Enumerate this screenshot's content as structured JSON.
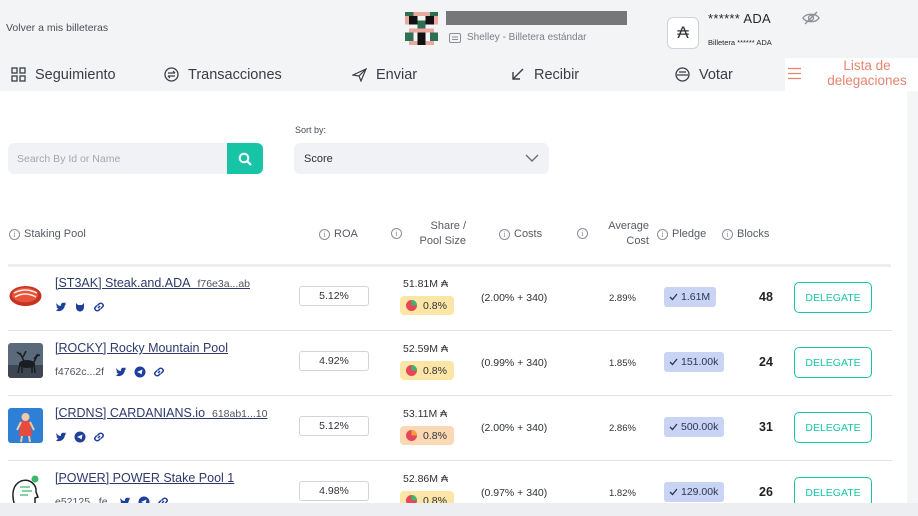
{
  "header": {
    "back_link": "Volver a mis billeteras",
    "wallet_subtitle": "Shelley - Billetera estándar",
    "ada_symbol": "₳",
    "balance": "****** ADA",
    "balance_label": "Billetera ****** ADA"
  },
  "nav": {
    "items": [
      "Seguimiento",
      "Transacciones",
      "Enviar",
      "Recibir",
      "Votar"
    ],
    "active": "Lista de delegaciones"
  },
  "search": {
    "placeholder": "Search By Id or Name",
    "value": ""
  },
  "sort": {
    "label": "Sort by:",
    "value": "Score"
  },
  "columns": {
    "pool": "Staking Pool",
    "roa": "ROA",
    "share": "Share /",
    "share2": "Pool Size",
    "costs": "Costs",
    "avg": "Average",
    "avg2": "Cost",
    "pledge": "Pledge",
    "blocks": "Blocks"
  },
  "accent_color": "#17c5a6",
  "active_nav_color": "#e4866f",
  "pools": [
    {
      "name": "[ST3AK] Steak.and.ADA",
      "id": "f76e3a...ab",
      "socials": [
        "twitter-icon",
        "github-icon",
        "link-icon"
      ],
      "roa": "5.12%",
      "pool_size": "51.81M ₳",
      "share": "0.8%",
      "costs": "(2.00% + 340)",
      "avg_cost": "2.89%",
      "pledge": "1.61M",
      "blocks": "48",
      "button": "DELEGATE"
    },
    {
      "name": "[ROCKY] Rocky Mountain Pool",
      "id": "f4762c...2f",
      "socials": [
        "twitter-icon",
        "telegram-icon",
        "link-icon"
      ],
      "roa": "4.92%",
      "pool_size": "52.59M ₳",
      "share": "0.8%",
      "costs": "(0.99% + 340)",
      "avg_cost": "1.85%",
      "pledge": "151.00k",
      "blocks": "24",
      "button": "DELEGATE"
    },
    {
      "name": "[CRDNS] CARDANIANS.io",
      "id": "618ab1...10",
      "socials": [
        "twitter-icon",
        "telegram-icon",
        "link-icon"
      ],
      "roa": "5.12%",
      "pool_size": "53.11M ₳",
      "share": "0.8%",
      "costs": "(2.00% + 340)",
      "avg_cost": "2.86%",
      "pledge": "500.00k",
      "blocks": "31",
      "button": "DELEGATE"
    },
    {
      "name": "[POWER] POWER Stake Pool 1",
      "id": "e52125...fe",
      "socials": [
        "twitter-icon",
        "telegram-icon",
        "link-icon"
      ],
      "roa": "4.98%",
      "pool_size": "52.86M ₳",
      "share": "0.8%",
      "costs": "(0.97% + 340)",
      "avg_cost": "1.82%",
      "pledge": "129.00k",
      "blocks": "26",
      "button": "DELEGATE"
    }
  ]
}
